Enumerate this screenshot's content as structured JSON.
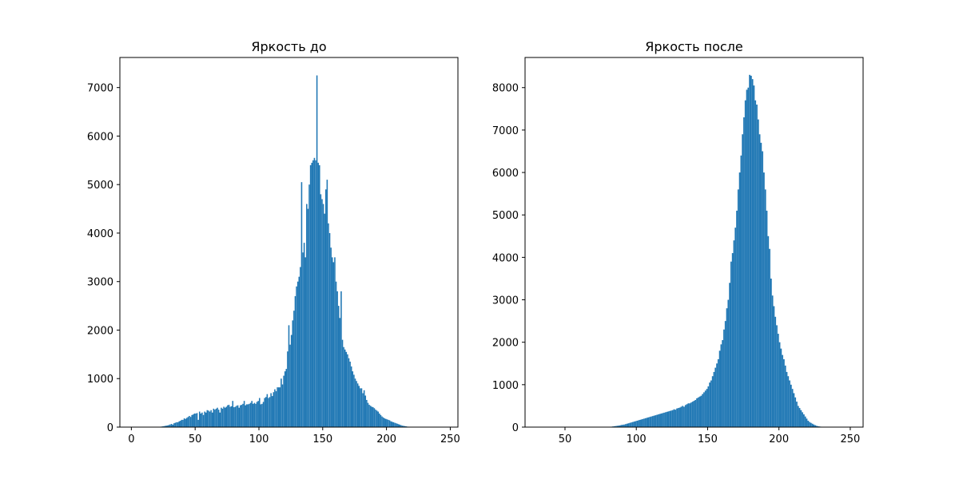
{
  "chart_data": [
    {
      "type": "bar",
      "title": "Яркость до",
      "xlabel": "",
      "ylabel": "",
      "xlim": [
        -9,
        256
      ],
      "ylim": [
        0,
        7620
      ],
      "xticks": [
        0,
        50,
        100,
        150,
        200,
        250
      ],
      "yticks": [
        0,
        1000,
        2000,
        3000,
        4000,
        5000,
        6000,
        7000
      ],
      "bar_color": "#1f77b4",
      "grid": false,
      "x_start": 0,
      "bin_width": 1,
      "values": [
        0,
        0,
        0,
        0,
        0,
        0,
        0,
        0,
        0,
        0,
        0,
        0,
        0,
        0,
        0,
        0,
        0,
        0,
        0,
        0,
        0,
        0,
        5,
        10,
        15,
        20,
        25,
        30,
        35,
        45,
        55,
        65,
        50,
        80,
        90,
        100,
        100,
        120,
        130,
        150,
        150,
        180,
        170,
        190,
        210,
        230,
        210,
        250,
        260,
        280,
        280,
        290,
        150,
        320,
        280,
        300,
        250,
        320,
        300,
        350,
        340,
        320,
        350,
        300,
        380,
        360,
        380,
        400,
        360,
        300,
        400,
        380,
        420,
        400,
        420,
        450,
        460,
        420,
        430,
        540,
        410,
        420,
        440,
        450,
        400,
        450,
        460,
        480,
        540,
        450,
        470,
        470,
        480,
        500,
        540,
        480,
        500,
        480,
        520,
        540,
        600,
        470,
        480,
        520,
        600,
        620,
        680,
        600,
        620,
        700,
        640,
        720,
        780,
        740,
        820,
        820,
        820,
        1000,
        880,
        1060,
        1150,
        1200,
        1560,
        2100,
        1700,
        1900,
        2200,
        2400,
        2700,
        2900,
        3000,
        3100,
        3300,
        5050,
        3600,
        3800,
        3500,
        4600,
        4500,
        5000,
        5400,
        5450,
        5500,
        5550,
        5500,
        7250,
        5450,
        5400,
        4800,
        4700,
        4600,
        4400,
        4900,
        5100,
        4200,
        4000,
        3700,
        3500,
        3400,
        3500,
        3000,
        2800,
        2500,
        2250,
        2800,
        1800,
        1650,
        1600,
        1550,
        1500,
        1420,
        1350,
        1250,
        1150,
        1080,
        1000,
        950,
        900,
        850,
        800,
        800,
        700,
        760,
        650,
        560,
        500,
        460,
        440,
        420,
        410,
        390,
        360,
        340,
        320,
        280,
        250,
        220,
        200,
        180,
        170,
        160,
        150,
        140,
        120,
        110,
        100,
        90,
        80,
        70,
        60,
        50,
        40,
        30,
        25,
        20,
        15,
        10,
        8,
        6,
        5,
        4,
        3,
        2,
        1,
        0,
        0,
        0,
        0,
        0,
        0,
        0,
        0,
        0,
        0,
        0,
        0,
        0,
        0,
        0,
        0,
        0,
        0,
        0,
        0,
        0,
        0,
        0,
        0,
        0
      ]
    },
    {
      "type": "bar",
      "title": "Яркость после",
      "xlabel": "",
      "ylabel": "",
      "xlim": [
        22,
        259
      ],
      "ylim": [
        0,
        8710
      ],
      "xticks": [
        50,
        100,
        150,
        200,
        250
      ],
      "yticks": [
        0,
        1000,
        2000,
        3000,
        4000,
        5000,
        6000,
        7000,
        8000
      ],
      "bar_color": "#1f77b4",
      "grid": false,
      "x_start": 30,
      "bin_width": 1,
      "values": [
        0,
        0,
        0,
        0,
        0,
        0,
        0,
        0,
        0,
        0,
        0,
        0,
        0,
        0,
        0,
        0,
        0,
        0,
        0,
        0,
        0,
        0,
        0,
        0,
        0,
        0,
        0,
        0,
        0,
        0,
        0,
        0,
        0,
        0,
        0,
        0,
        0,
        0,
        0,
        0,
        0,
        0,
        0,
        0,
        0,
        0,
        2,
        3,
        4,
        5,
        6,
        8,
        10,
        15,
        20,
        25,
        30,
        35,
        40,
        50,
        55,
        60,
        70,
        80,
        90,
        100,
        110,
        120,
        130,
        140,
        150,
        160,
        170,
        180,
        190,
        200,
        210,
        220,
        230,
        240,
        250,
        260,
        270,
        280,
        290,
        300,
        310,
        320,
        330,
        340,
        350,
        360,
        370,
        380,
        390,
        400,
        420,
        410,
        440,
        450,
        460,
        480,
        500,
        480,
        520,
        540,
        560,
        560,
        580,
        600,
        620,
        640,
        680,
        700,
        720,
        740,
        780,
        820,
        860,
        900,
        960,
        1050,
        1100,
        1200,
        1300,
        1400,
        1500,
        1600,
        1800,
        1950,
        2050,
        2300,
        2500,
        2800,
        3000,
        3400,
        3900,
        4100,
        4400,
        4700,
        5100,
        5600,
        6000,
        6400,
        6900,
        7300,
        7700,
        7950,
        8000,
        8300,
        8280,
        8200,
        8050,
        7700,
        7600,
        7250,
        6900,
        6700,
        6500,
        6000,
        5600,
        5100,
        4500,
        4200,
        3500,
        3100,
        2850,
        2600,
        2400,
        2200,
        2000,
        1850,
        1700,
        1600,
        1450,
        1300,
        1200,
        1100,
        1000,
        900,
        800,
        700,
        600,
        500,
        450,
        400,
        350,
        300,
        250,
        200,
        150,
        120,
        100,
        80,
        60,
        45,
        30,
        20,
        15,
        10,
        5,
        3,
        2,
        1,
        0,
        0,
        0,
        0,
        0,
        0,
        0
      ]
    }
  ],
  "axes": [
    {
      "title": "Яркость до",
      "tick_labels_x": [
        "0",
        "50",
        "100",
        "150",
        "200",
        "250"
      ],
      "tick_labels_y": [
        "0",
        "1000",
        "2000",
        "3000",
        "4000",
        "5000",
        "6000",
        "7000"
      ]
    },
    {
      "title": "Яркость после",
      "tick_labels_x": [
        "50",
        "100",
        "150",
        "200",
        "250"
      ],
      "tick_labels_y": [
        "0",
        "1000",
        "2000",
        "3000",
        "4000",
        "5000",
        "6000",
        "7000",
        "8000"
      ]
    }
  ]
}
